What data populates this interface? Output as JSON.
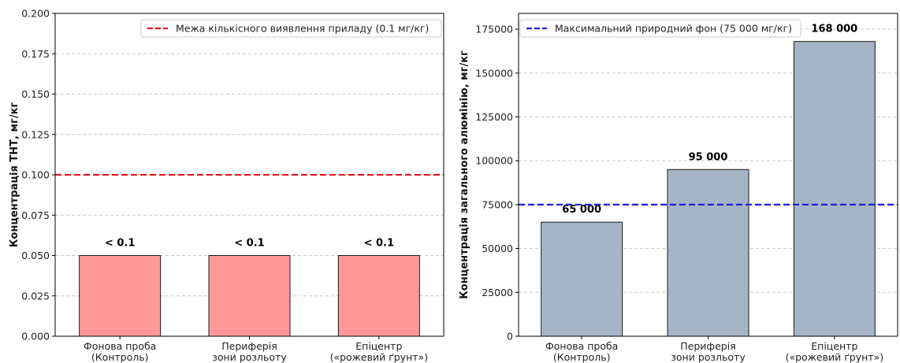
{
  "chart_data": [
    {
      "type": "bar",
      "categories": [
        [
          "Фонова проба",
          "(Контроль)"
        ],
        [
          "Периферія",
          "зони розльоту"
        ],
        [
          "Епіцентр",
          "(«рожевий ґрунт»)"
        ]
      ],
      "values": [
        0.05,
        0.05,
        0.05
      ],
      "data_labels": [
        "< 0.1",
        "< 0.1",
        "< 0.1"
      ],
      "ylabel": "Концентрація ТНТ, мг/кг",
      "ylim": [
        0,
        0.2
      ],
      "yticks": [
        0,
        0.025,
        0.05,
        0.075,
        0.1,
        0.125,
        0.15,
        0.175,
        0.2
      ],
      "ytick_labels": [
        "0.000",
        "0.025",
        "0.050",
        "0.075",
        "0.100",
        "0.125",
        "0.150",
        "0.175",
        "0.200"
      ],
      "bar_color": "#ff9999",
      "reference_line": {
        "value": 0.1,
        "label": "Межа кількісного виявлення приладу (0.1 мг/кг)",
        "color": "#e31a1c",
        "style": "dashed"
      },
      "grid": "y-dashed",
      "legend_position": "top-right"
    },
    {
      "type": "bar",
      "categories": [
        [
          "Фонова проба",
          "(Контроль)"
        ],
        [
          "Периферія",
          "зони розльоту"
        ],
        [
          "Епіцентр",
          "(«рожевий ґрунт»)"
        ]
      ],
      "values": [
        65000,
        95000,
        168000
      ],
      "data_labels": [
        "65 000",
        "95 000",
        "168 000"
      ],
      "ylabel": "Концентрація загального алюмінію, мг/кг",
      "ylim": [
        0,
        184000
      ],
      "yticks": [
        0,
        25000,
        50000,
        75000,
        100000,
        125000,
        150000,
        175000
      ],
      "ytick_labels": [
        "0",
        "25000",
        "50000",
        "75000",
        "100000",
        "125000",
        "150000",
        "175000"
      ],
      "bar_color": "#a6b5c6",
      "reference_line": {
        "value": 75000,
        "label": "Максимальний природний фон (75 000 мг/кг)",
        "color": "#1f1fe0",
        "style": "dashed"
      },
      "grid": "y-dashed",
      "legend_position": "top-left"
    }
  ]
}
